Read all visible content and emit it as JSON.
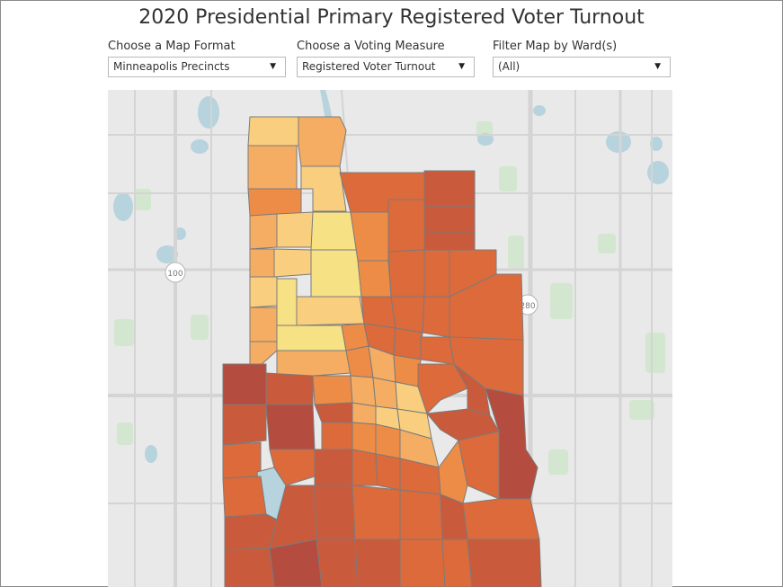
{
  "title": "2020 Presidential Primary Registered Voter Turnout",
  "controls": [
    {
      "label": "Choose a Map Format",
      "value": "Minneapolis Precincts"
    },
    {
      "label": "Choose a Voting Measure",
      "value": "Registered Voter Turnout"
    },
    {
      "label": "Filter Map by Ward(s)",
      "value": "(All)"
    }
  ],
  "map": {
    "highway_shields": [
      "100",
      "280"
    ],
    "colors": {
      "background": "#e9e9e9",
      "road": "#d4d4d4",
      "park": "#d3e6cf",
      "water": "#b7d3dd",
      "border": "#7b7b7b",
      "turnout_scale": [
        "#f6e184",
        "#f9cf7f",
        "#f5ad63",
        "#ed8c47",
        "#dc6a3b",
        "#c95a3c",
        "#b44c3f"
      ]
    }
  }
}
